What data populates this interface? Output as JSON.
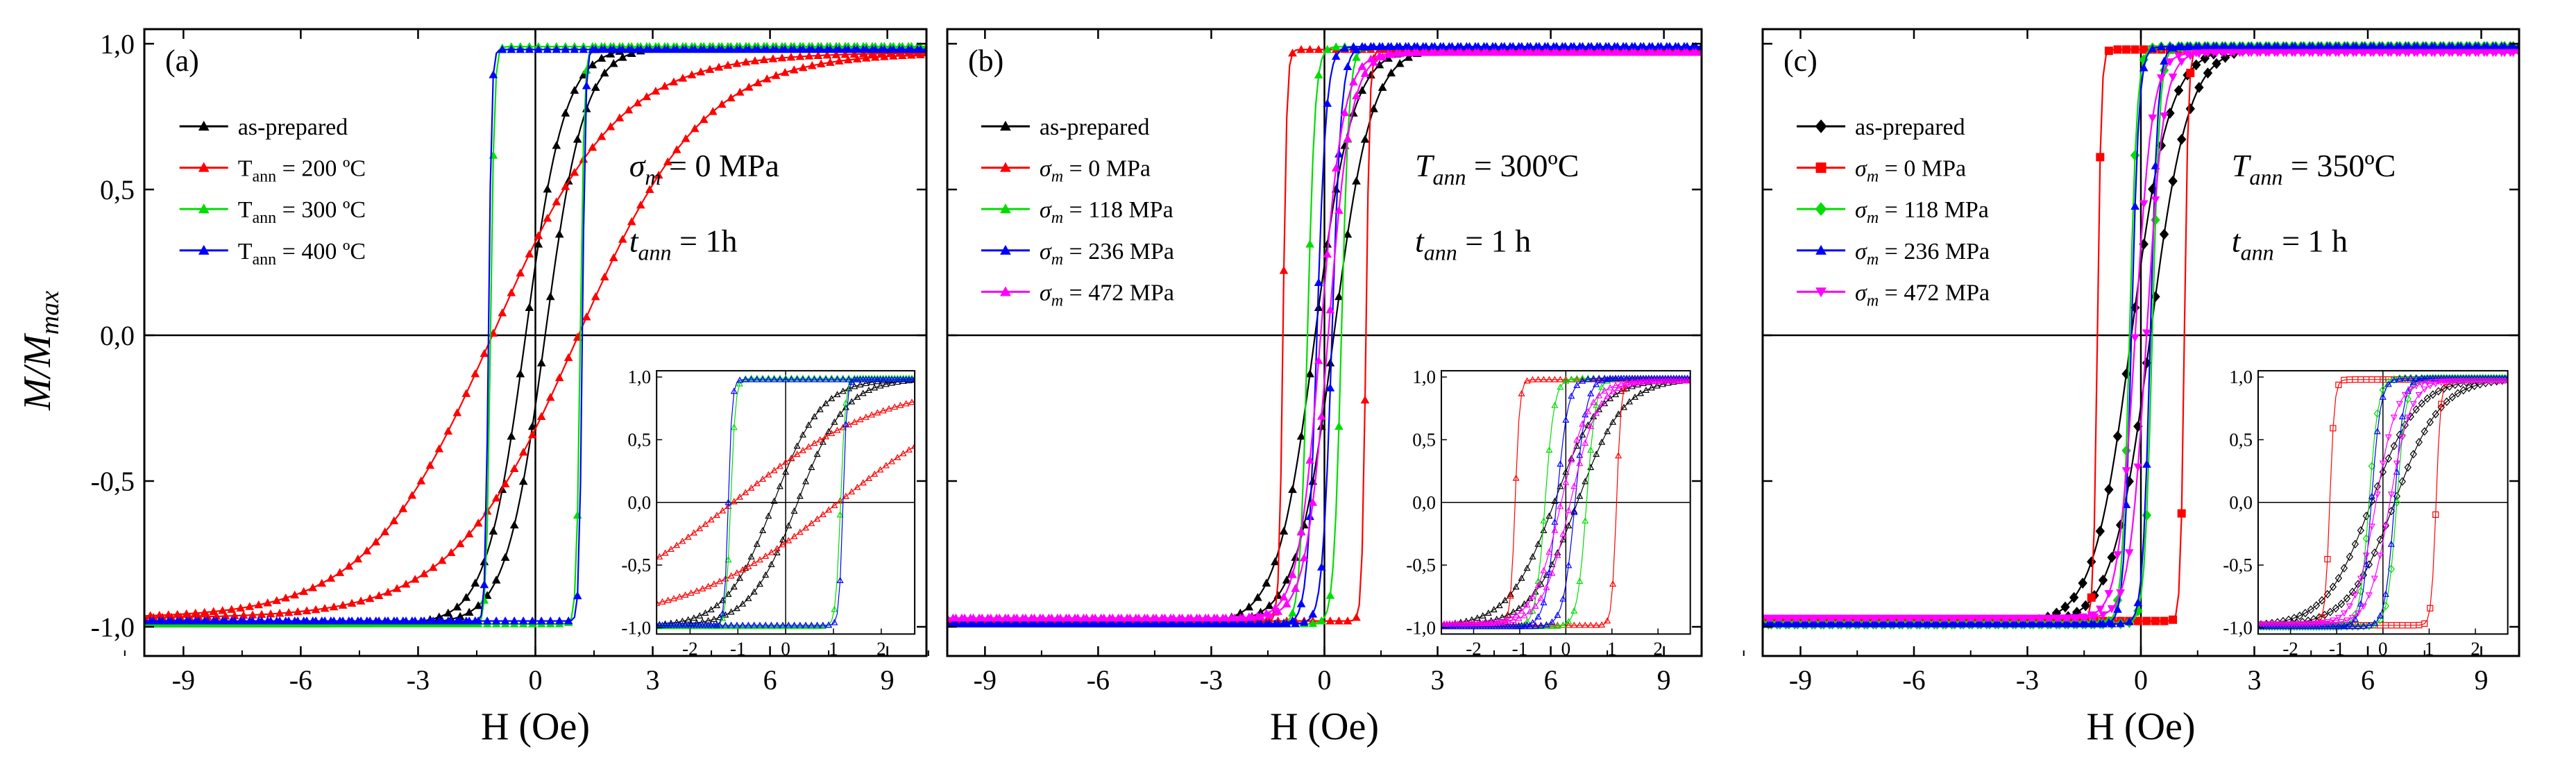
{
  "figure": {
    "ylabel_main": "M/M",
    "ylabel_sub": "max",
    "xlabel": "H (Oe)"
  },
  "chart_data": [
    {
      "type": "line",
      "panel_label": "(a)",
      "xlabel": "H (Oe)",
      "ylabel": "M/Mmax",
      "xlim": [
        -10,
        10
      ],
      "ylim": [
        -1.1,
        1.05
      ],
      "x_ticks": [
        -9,
        -6,
        -3,
        0,
        3,
        6,
        9
      ],
      "y_ticks": [
        -1.0,
        -0.5,
        0.0,
        0.5,
        1.0
      ],
      "y_tick_labels": [
        "-1,0",
        "-0,5",
        "0,0",
        "0,5",
        "1,0"
      ],
      "legend_position": "upper-left",
      "annotation": [
        {
          "var": "σ",
          "sub": "m",
          "rest": " = 0 MPa"
        },
        {
          "var": "t",
          "sub": "ann",
          "rest": " = 1h"
        }
      ],
      "series": [
        {
          "name": "as-prepared",
          "label_sub": "",
          "label_rest": "",
          "color": "#000000",
          "marker": "triangle",
          "hc": 0.25,
          "w": 1.0,
          "sat": 0.99
        },
        {
          "name": "T",
          "label_sub": "ann",
          "label_rest": " = 200 ºC",
          "color": "#ff0000",
          "marker": "triangle",
          "hc": 1.1,
          "w": 3.2,
          "sat": 0.97
        },
        {
          "name": "T",
          "label_sub": "ann",
          "label_rest": " = 300 ºC",
          "color": "#00dd00",
          "marker": "triangle",
          "hc": 1.15,
          "w": 0.1,
          "sat": 0.99
        },
        {
          "name": "T",
          "label_sub": "ann",
          "label_rest": " = 400 ºC",
          "color": "#0000ff",
          "marker": "triangle",
          "hc": 1.2,
          "w": 0.08,
          "sat": 0.98
        }
      ],
      "inset": {
        "xlim": [
          -2.7,
          2.7
        ],
        "ylim": [
          -1.05,
          1.05
        ],
        "x_ticks": [
          -2,
          -1,
          0,
          1,
          2
        ],
        "y_ticks": [
          -1.0,
          -0.5,
          0.0,
          0.5,
          1.0
        ],
        "y_tick_labels": [
          "-1,0",
          "-0,5",
          "0,0",
          "0,5",
          "1,0"
        ]
      }
    },
    {
      "type": "line",
      "panel_label": "(b)",
      "xlabel": "H (Oe)",
      "ylabel": "M/Mmax",
      "xlim": [
        -10,
        10
      ],
      "ylim": [
        -1.1,
        1.05
      ],
      "x_ticks": [
        -9,
        -6,
        -3,
        0,
        3,
        6,
        9
      ],
      "y_ticks": [
        -1.0,
        -0.5,
        0.0,
        0.5,
        1.0
      ],
      "legend_position": "upper-left",
      "annotation": [
        {
          "var": "T",
          "sub": "ann",
          "rest": " = 300ºC"
        },
        {
          "var": "t",
          "sub": "ann",
          "rest": " = 1 h"
        }
      ],
      "series": [
        {
          "name": "as-prepared",
          "label_sub": "",
          "label_rest": "",
          "color": "#000000",
          "marker": "triangle",
          "hc": 0.25,
          "w": 1.0,
          "sat": 0.99
        },
        {
          "name": "σ",
          "label_sub": "m",
          "label_rest": " = 0 MPa",
          "color": "#ff0000",
          "marker": "triangle",
          "hc": 1.1,
          "w": 0.1,
          "sat": 0.98
        },
        {
          "name": "σ",
          "label_sub": "m",
          "label_rest": " = 118 MPa",
          "color": "#00dd00",
          "marker": "triangle",
          "hc": 0.45,
          "w": 0.2,
          "sat": 0.99
        },
        {
          "name": "σ",
          "label_sub": "m",
          "label_rest": " = 236 MPa",
          "color": "#0000ff",
          "marker": "triangle",
          "hc": 0.2,
          "w": 0.25,
          "sat": 0.99
        },
        {
          "name": "σ",
          "label_sub": "m",
          "label_rest": " = 472 MPa",
          "color": "#ff00ff",
          "marker": "triangle",
          "hc": 0.1,
          "w": 0.6,
          "sat": 0.97
        }
      ],
      "inset": {
        "xlim": [
          -2.7,
          2.7
        ],
        "ylim": [
          -1.05,
          1.05
        ],
        "x_ticks": [
          -2,
          -1,
          0,
          1,
          2
        ],
        "y_ticks": [
          -1.0,
          -0.5,
          0.0,
          0.5,
          1.0
        ],
        "y_tick_labels": [
          "-1,0",
          "-0,5",
          "0,0",
          "0,5",
          "1,0"
        ]
      }
    },
    {
      "type": "line",
      "panel_label": "(c)",
      "xlabel": "H (Oe)",
      "ylabel": "M/Mmax",
      "xlim": [
        -10,
        10
      ],
      "ylim": [
        -1.1,
        1.05
      ],
      "x_ticks": [
        -9,
        -6,
        -3,
        0,
        3,
        6,
        9
      ],
      "y_ticks": [
        -1.0,
        -0.5,
        0.0,
        0.5,
        1.0
      ],
      "legend_position": "upper-left",
      "annotation": [
        {
          "var": "T",
          "sub": "ann",
          "rest": " = 350ºC"
        },
        {
          "var": "t",
          "sub": "ann",
          "rest": " = 1 h"
        }
      ],
      "series": [
        {
          "name": "as-prepared",
          "label_sub": "",
          "label_rest": "",
          "color": "#000000",
          "marker": "diamond",
          "hc": 0.25,
          "w": 1.0,
          "sat": 0.99
        },
        {
          "name": "σ",
          "label_sub": "m",
          "label_rest": " = 0 MPa",
          "color": "#ff0000",
          "marker": "square",
          "hc": 1.15,
          "w": 0.1,
          "sat": 0.98
        },
        {
          "name": "σ",
          "label_sub": "m",
          "label_rest": " = 118 MPa",
          "color": "#00dd00",
          "marker": "diamond",
          "hc": 0.3,
          "w": 0.2,
          "sat": 0.99
        },
        {
          "name": "σ",
          "label_sub": "m",
          "label_rest": " = 236 MPa",
          "color": "#0000ff",
          "marker": "triangle",
          "hc": 0.25,
          "w": 0.2,
          "sat": 0.99
        },
        {
          "name": "σ",
          "label_sub": "m",
          "label_rest": " = 472 MPa",
          "color": "#ff00ff",
          "marker": "triangle-down",
          "hc": 0.15,
          "w": 0.45,
          "sat": 0.97
        }
      ],
      "inset": {
        "xlim": [
          -2.7,
          2.7
        ],
        "ylim": [
          -1.05,
          1.05
        ],
        "x_ticks": [
          -2,
          -1,
          0,
          1,
          2
        ],
        "y_ticks": [
          -1.0,
          -0.5,
          0.0,
          0.5,
          1.0
        ],
        "y_tick_labels": [
          "-1,0",
          "-0,5",
          "0,0",
          "0,5",
          "1,0"
        ]
      }
    }
  ]
}
